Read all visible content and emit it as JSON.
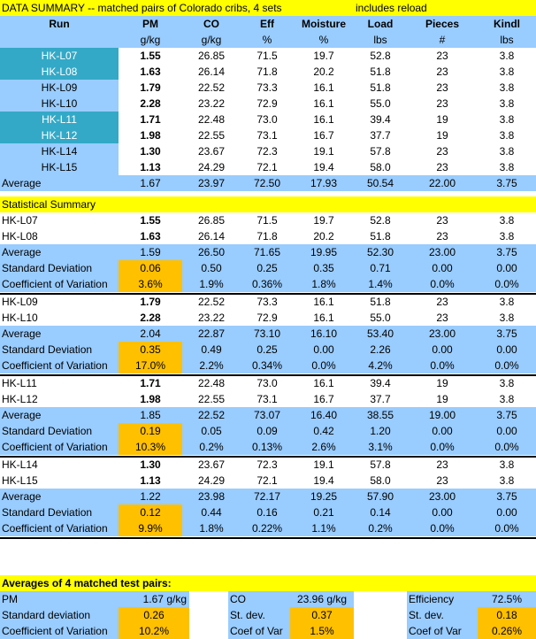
{
  "title": "DATA SUMMARY -- matched pairs of Colorado cribs, 4 sets",
  "note": "includes reload",
  "headers": [
    "Run",
    "PM",
    "CO",
    "Eff",
    "Moisture",
    "Load",
    "Pieces",
    "Kindl"
  ],
  "units": [
    "",
    "g/kg",
    "g/kg",
    "%",
    "%",
    "lbs",
    "#",
    "lbs"
  ],
  "runs": [
    {
      "run": "HK-L07",
      "pm": "1.55",
      "co": "26.85",
      "eff": "71.5",
      "moist": "19.7",
      "load": "52.8",
      "pieces": "23",
      "kindl": "3.8",
      "highlight": true
    },
    {
      "run": "HK-L08",
      "pm": "1.63",
      "co": "26.14",
      "eff": "71.8",
      "moist": "20.2",
      "load": "51.8",
      "pieces": "23",
      "kindl": "3.8",
      "highlight": true
    },
    {
      "run": "HK-L09",
      "pm": "1.79",
      "co": "22.52",
      "eff": "73.3",
      "moist": "16.1",
      "load": "51.8",
      "pieces": "23",
      "kindl": "3.8",
      "highlight": false
    },
    {
      "run": "HK-L10",
      "pm": "2.28",
      "co": "23.22",
      "eff": "72.9",
      "moist": "16.1",
      "load": "55.0",
      "pieces": "23",
      "kindl": "3.8",
      "highlight": false
    },
    {
      "run": "HK-L11",
      "pm": "1.71",
      "co": "22.48",
      "eff": "73.0",
      "moist": "16.1",
      "load": "39.4",
      "pieces": "19",
      "kindl": "3.8",
      "highlight": true
    },
    {
      "run": "HK-L12",
      "pm": "1.98",
      "co": "22.55",
      "eff": "73.1",
      "moist": "16.7",
      "load": "37.7",
      "pieces": "19",
      "kindl": "3.8",
      "highlight": true
    },
    {
      "run": "HK-L14",
      "pm": "1.30",
      "co": "23.67",
      "eff": "72.3",
      "moist": "19.1",
      "load": "57.8",
      "pieces": "23",
      "kindl": "3.8",
      "highlight": false
    },
    {
      "run": "HK-L15",
      "pm": "1.13",
      "co": "24.29",
      "eff": "72.1",
      "moist": "19.4",
      "load": "58.0",
      "pieces": "23",
      "kindl": "3.8",
      "highlight": false
    }
  ],
  "average": {
    "label": "Average",
    "pm": "1.67",
    "co": "23.97",
    "eff": "72.50",
    "moist": "17.93",
    "load": "50.54",
    "pieces": "22.00",
    "kindl": "3.75"
  },
  "stat_title": "Statistical Summary",
  "groups": [
    {
      "runs": [
        {
          "run": "HK-L07",
          "pm": "1.55",
          "co": "26.85",
          "eff": "71.5",
          "moist": "19.7",
          "load": "52.8",
          "pieces": "23",
          "kindl": "3.8"
        },
        {
          "run": "HK-L08",
          "pm": "1.63",
          "co": "26.14",
          "eff": "71.8",
          "moist": "20.2",
          "load": "51.8",
          "pieces": "23",
          "kindl": "3.8"
        }
      ],
      "avg": {
        "label": "Average",
        "pm": "1.59",
        "co": "26.50",
        "eff": "71.65",
        "moist": "19.95",
        "load": "52.30",
        "pieces": "23.00",
        "kindl": "3.75"
      },
      "sd": {
        "label": "Standard Deviation",
        "pm": "0.06",
        "co": "0.50",
        "eff": "0.25",
        "moist": "0.35",
        "load": "0.71",
        "pieces": "0.00",
        "kindl": "0.00"
      },
      "cv": {
        "label": "Coefficient of Variation",
        "pm": "3.6%",
        "co": "1.9%",
        "eff": "0.36%",
        "moist": "1.8%",
        "load": "1.4%",
        "pieces": "0.0%",
        "kindl": "0.0%"
      }
    },
    {
      "runs": [
        {
          "run": "HK-L09",
          "pm": "1.79",
          "co": "22.52",
          "eff": "73.3",
          "moist": "16.1",
          "load": "51.8",
          "pieces": "23",
          "kindl": "3.8"
        },
        {
          "run": "HK-L10",
          "pm": "2.28",
          "co": "23.22",
          "eff": "72.9",
          "moist": "16.1",
          "load": "55.0",
          "pieces": "23",
          "kindl": "3.8"
        }
      ],
      "avg": {
        "label": "Average",
        "pm": "2.04",
        "co": "22.87",
        "eff": "73.10",
        "moist": "16.10",
        "load": "53.40",
        "pieces": "23.00",
        "kindl": "3.75"
      },
      "sd": {
        "label": "Standard Deviation",
        "pm": "0.35",
        "co": "0.49",
        "eff": "0.25",
        "moist": "0.00",
        "load": "2.26",
        "pieces": "0.00",
        "kindl": "0.00"
      },
      "cv": {
        "label": "Coefficient of Variation",
        "pm": "17.0%",
        "co": "2.2%",
        "eff": "0.34%",
        "moist": "0.0%",
        "load": "4.2%",
        "pieces": "0.0%",
        "kindl": "0.0%"
      }
    },
    {
      "runs": [
        {
          "run": "HK-L11",
          "pm": "1.71",
          "co": "22.48",
          "eff": "73.0",
          "moist": "16.1",
          "load": "39.4",
          "pieces": "19",
          "kindl": "3.8"
        },
        {
          "run": "HK-L12",
          "pm": "1.98",
          "co": "22.55",
          "eff": "73.1",
          "moist": "16.7",
          "load": "37.7",
          "pieces": "19",
          "kindl": "3.8"
        }
      ],
      "avg": {
        "label": "Average",
        "pm": "1.85",
        "co": "22.52",
        "eff": "73.07",
        "moist": "16.40",
        "load": "38.55",
        "pieces": "19.00",
        "kindl": "3.75"
      },
      "sd": {
        "label": "Standard Deviation",
        "pm": "0.19",
        "co": "0.05",
        "eff": "0.09",
        "moist": "0.42",
        "load": "1.20",
        "pieces": "0.00",
        "kindl": "0.00"
      },
      "cv": {
        "label": "Coefficient of Variation",
        "pm": "10.3%",
        "co": "0.2%",
        "eff": "0.13%",
        "moist": "2.6%",
        "load": "3.1%",
        "pieces": "0.0%",
        "kindl": "0.0%"
      }
    },
    {
      "runs": [
        {
          "run": "HK-L14",
          "pm": "1.30",
          "co": "23.67",
          "eff": "72.3",
          "moist": "19.1",
          "load": "57.8",
          "pieces": "23",
          "kindl": "3.8"
        },
        {
          "run": "HK-L15",
          "pm": "1.13",
          "co": "24.29",
          "eff": "72.1",
          "moist": "19.4",
          "load": "58.0",
          "pieces": "23",
          "kindl": "3.8"
        }
      ],
      "avg": {
        "label": "Average",
        "pm": "1.22",
        "co": "23.98",
        "eff": "72.17",
        "moist": "19.25",
        "load": "57.90",
        "pieces": "23.00",
        "kindl": "3.75"
      },
      "sd": {
        "label": "Standard Deviation",
        "pm": "0.12",
        "co": "0.44",
        "eff": "0.16",
        "moist": "0.21",
        "load": "0.14",
        "pieces": "0.00",
        "kindl": "0.00"
      },
      "cv": {
        "label": "Coefficient of Variation",
        "pm": "9.9%",
        "co": "1.8%",
        "eff": "0.22%",
        "moist": "1.1%",
        "load": "0.2%",
        "pieces": "0.0%",
        "kindl": "0.0%"
      }
    }
  ],
  "final": {
    "title": "Averages of 4 matched test pairs:",
    "pm": {
      "label": "PM",
      "value": "1.67 g/kg",
      "sd_label": "Standard deviation",
      "sd": "0.26",
      "cv_label": "Coefficient of Variation",
      "cv": "10.2%"
    },
    "co": {
      "label": "CO",
      "value": "23.96 g/kg",
      "sd_label": "St. dev.",
      "sd": "0.37",
      "cv_label": "Coef of Var",
      "cv": "1.5%"
    },
    "eff": {
      "label": "Efficiency",
      "value": "72.5%",
      "sd_label": "St. dev.",
      "sd": "0.18",
      "cv_label": "Coef of Var",
      "cv": "0.26%"
    }
  },
  "colors": {
    "yellow": "#ffff00",
    "blue": "#99ccff",
    "teal": "#33a9c7",
    "orange": "#ffc000"
  }
}
